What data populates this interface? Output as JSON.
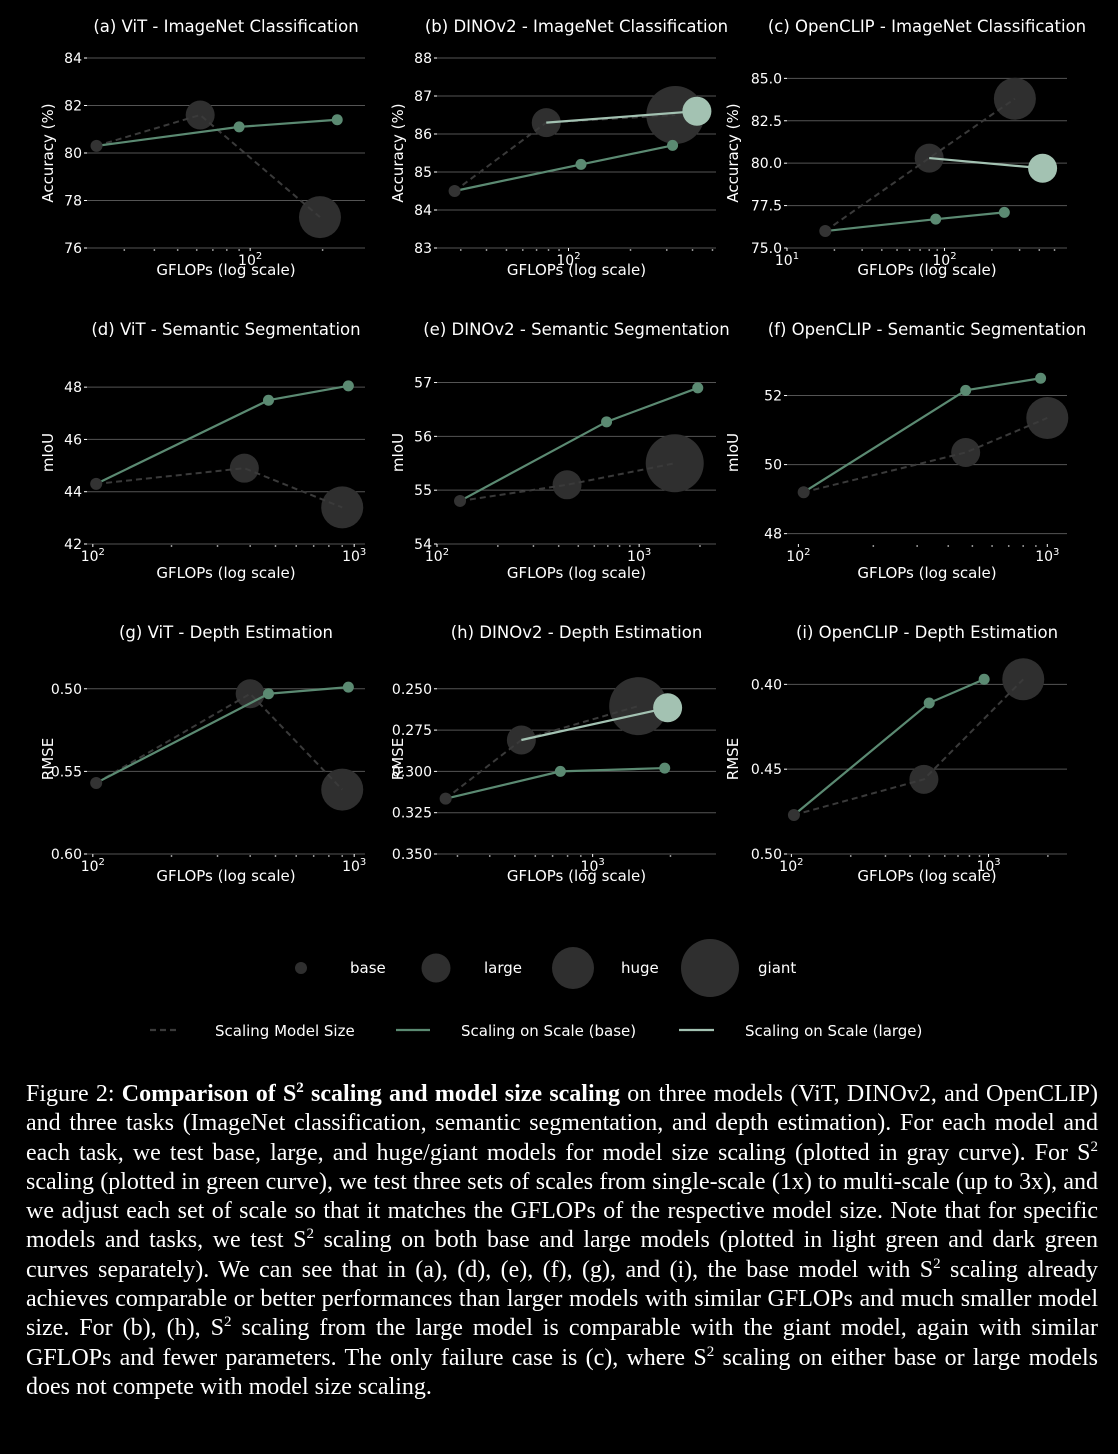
{
  "chart_data": [
    {
      "id": "a",
      "type": "line",
      "title": "(a) ViT - ImageNet Classification",
      "xlabel": "GFLOPs (log scale)",
      "ylabel": "Accuracy (%)",
      "xscale": "log",
      "xlim": [
        21,
        300
      ],
      "ylim": [
        76,
        84
      ],
      "yticks": [
        76,
        78,
        80,
        82,
        84
      ],
      "ytick_labels": [
        "76",
        "78",
        "80",
        "82",
        "84"
      ],
      "xticks": [
        100
      ],
      "xtick_labels": [
        "10^2"
      ],
      "minor_xticks": [
        30,
        40,
        50,
        60,
        70,
        80,
        90,
        200
      ],
      "series": [
        {
          "role": "model-size",
          "x": [
            23,
            62,
            195
          ],
          "y": [
            80.3,
            81.6,
            77.3
          ],
          "sizes": [
            "base",
            "large",
            "huge"
          ]
        },
        {
          "role": "s2-base",
          "x": [
            23,
            90,
            230
          ],
          "y": [
            80.3,
            81.1,
            81.4
          ]
        }
      ]
    },
    {
      "id": "b",
      "type": "line",
      "title": "(b) DINOv2 - ImageNet Classification",
      "xlabel": "GFLOPs (log scale)",
      "ylabel": "Accuracy (%)",
      "xscale": "log",
      "xlim": [
        23,
        520
      ],
      "ylim": [
        83,
        88
      ],
      "yticks": [
        83,
        84,
        85,
        86,
        87,
        88
      ],
      "ytick_labels": [
        "83",
        "84",
        "85",
        "86",
        "87",
        "88"
      ],
      "xticks": [
        100
      ],
      "xtick_labels": [
        "10^2"
      ],
      "minor_xticks": [
        30,
        40,
        50,
        60,
        70,
        80,
        90,
        200,
        300,
        400,
        500
      ],
      "series": [
        {
          "role": "model-size",
          "x": [
            28,
            78,
            330
          ],
          "y": [
            84.5,
            86.3,
            86.5
          ],
          "sizes": [
            "base",
            "large",
            "giant"
          ]
        },
        {
          "role": "s2-base",
          "x": [
            28,
            115,
            320
          ],
          "y": [
            84.5,
            85.2,
            85.7
          ]
        },
        {
          "role": "s2-large",
          "x": [
            78,
            420
          ],
          "y": [
            86.3,
            86.6
          ],
          "sizes": [
            "large"
          ]
        }
      ]
    },
    {
      "id": "c",
      "type": "line",
      "title": "(c) OpenCLIP - ImageNet Classification",
      "xlabel": "GFLOPs (log scale)",
      "ylabel": "Accuracy (%)",
      "xscale": "log",
      "xlim": [
        10,
        600
      ],
      "ylim": [
        75,
        86.2
      ],
      "yticks": [
        75.0,
        77.5,
        80.0,
        82.5,
        85.0
      ],
      "ytick_labels": [
        "75.0",
        "77.5",
        "80.0",
        "82.5",
        "85.0"
      ],
      "xticks": [
        10,
        100
      ],
      "xtick_labels": [
        "10^1",
        "10^2"
      ],
      "minor_xticks": [
        20,
        30,
        40,
        50,
        60,
        70,
        80,
        90,
        200,
        300,
        400,
        500,
        600
      ],
      "series": [
        {
          "role": "model-size",
          "x": [
            17.5,
            80,
            280
          ],
          "y": [
            76.0,
            80.3,
            83.8
          ],
          "sizes": [
            "base",
            "large",
            "huge"
          ]
        },
        {
          "role": "s2-base",
          "x": [
            17.5,
            88,
            240
          ],
          "y": [
            76.0,
            76.7,
            77.1
          ]
        },
        {
          "role": "s2-large",
          "x": [
            80,
            420
          ],
          "y": [
            80.3,
            79.7
          ],
          "sizes": [
            "large"
          ]
        }
      ]
    },
    {
      "id": "d",
      "type": "line",
      "title": "(d) ViT - Semantic Segmentation",
      "xlabel": "GFLOPs (log scale)",
      "ylabel": "mIoU",
      "xscale": "log",
      "xlim": [
        95,
        1100
      ],
      "ylim": [
        42,
        49
      ],
      "yticks": [
        42,
        44,
        46,
        48
      ],
      "ytick_labels": [
        "42",
        "44",
        "46",
        "48"
      ],
      "xticks": [
        100,
        1000
      ],
      "xtick_labels": [
        "10^2",
        "10^3"
      ],
      "minor_xticks": [
        200,
        300,
        400,
        500,
        600,
        700,
        800,
        900
      ],
      "series": [
        {
          "role": "model-size",
          "x": [
            103,
            380,
            900
          ],
          "y": [
            44.3,
            44.9,
            43.4
          ],
          "sizes": [
            "base",
            "large",
            "huge"
          ]
        },
        {
          "role": "s2-base",
          "x": [
            103,
            470,
            950
          ],
          "y": [
            44.3,
            47.5,
            48.05
          ]
        }
      ]
    },
    {
      "id": "e",
      "type": "line",
      "title": "(e) DINOv2 - Semantic Segmentation",
      "xlabel": "GFLOPs (log scale)",
      "ylabel": "mIoU",
      "xscale": "log",
      "xlim": [
        100,
        2400
      ],
      "ylim": [
        54,
        57.4
      ],
      "yticks": [
        54,
        55,
        56,
        57
      ],
      "ytick_labels": [
        "54",
        "55",
        "56",
        "57"
      ],
      "xticks": [
        100,
        1000
      ],
      "xtick_labels": [
        "10^2",
        "10^3"
      ],
      "minor_xticks": [
        200,
        300,
        400,
        500,
        600,
        700,
        800,
        900,
        2000
      ],
      "series": [
        {
          "role": "model-size",
          "x": [
            130,
            440,
            1500
          ],
          "y": [
            54.8,
            55.1,
            55.5
          ],
          "sizes": [
            "base",
            "large",
            "giant"
          ]
        },
        {
          "role": "s2-base",
          "x": [
            130,
            690,
            1950
          ],
          "y": [
            54.8,
            56.27,
            56.9
          ]
        }
      ]
    },
    {
      "id": "f",
      "type": "line",
      "title": "(f) OpenCLIP - Semantic Segmentation",
      "xlabel": "GFLOPs (log scale)",
      "ylabel": "mIoU",
      "xscale": "log",
      "xlim": [
        90,
        1200
      ],
      "ylim": [
        47.7,
        53
      ],
      "yticks": [
        48,
        50,
        52
      ],
      "ytick_labels": [
        "48",
        "50",
        "52"
      ],
      "xticks": [
        100,
        1000
      ],
      "xtick_labels": [
        "10^2",
        "10^3"
      ],
      "minor_xticks": [
        200,
        300,
        400,
        500,
        600,
        700,
        800,
        900
      ],
      "series": [
        {
          "role": "model-size",
          "x": [
            105,
            470,
            1000
          ],
          "y": [
            49.2,
            50.35,
            51.35
          ],
          "sizes": [
            "base",
            "large",
            "huge"
          ]
        },
        {
          "role": "s2-base",
          "x": [
            105,
            470,
            940
          ],
          "y": [
            49.2,
            52.15,
            52.5
          ]
        }
      ]
    },
    {
      "id": "g",
      "type": "line",
      "title": "(g) ViT - Depth Estimation",
      "xlabel": "GFLOPs (log scale)",
      "ylabel": "RMSE",
      "xscale": "log",
      "xlim": [
        95,
        1100
      ],
      "ylim": [
        0.6,
        0.485
      ],
      "y_inverted": true,
      "yticks": [
        0.5,
        0.55,
        0.6
      ],
      "ytick_labels": [
        "0.50",
        "0.55",
        "0.60"
      ],
      "xticks": [
        100,
        1000
      ],
      "xtick_labels": [
        "10^2",
        "10^3"
      ],
      "minor_xticks": [
        200,
        300,
        400,
        500,
        600,
        700,
        800,
        900
      ],
      "series": [
        {
          "role": "model-size",
          "x": [
            103,
            400,
            900
          ],
          "y": [
            0.557,
            0.503,
            0.561
          ],
          "sizes": [
            "base",
            "large",
            "huge"
          ]
        },
        {
          "role": "s2-base",
          "x": [
            103,
            470,
            950
          ],
          "y": [
            0.557,
            0.503,
            0.499
          ]
        }
      ]
    },
    {
      "id": "h",
      "type": "line",
      "title": "(h) DINOv2 - Depth Estimation",
      "xlabel": "GFLOPs (log scale)",
      "ylabel": "RMSE",
      "xscale": "log",
      "xlim": [
        250,
        3000
      ],
      "ylim": [
        0.35,
        0.235
      ],
      "y_inverted": true,
      "yticks": [
        0.25,
        0.275,
        0.3,
        0.325,
        0.35
      ],
      "ytick_labels": [
        "0.250",
        "0.275",
        "0.300",
        "0.325",
        "0.350"
      ],
      "xticks": [
        1000
      ],
      "xtick_labels": [
        "10^3"
      ],
      "minor_xticks": [
        300,
        400,
        500,
        600,
        700,
        800,
        900,
        2000
      ],
      "series": [
        {
          "role": "model-size",
          "x": [
            270,
            530,
            1500
          ],
          "y": [
            0.3165,
            0.281,
            0.2605
          ],
          "sizes": [
            "base",
            "large",
            "giant"
          ]
        },
        {
          "role": "s2-base",
          "x": [
            270,
            750,
            1900
          ],
          "y": [
            0.3165,
            0.3,
            0.298
          ]
        },
        {
          "role": "s2-large",
          "x": [
            530,
            1950
          ],
          "y": [
            0.281,
            0.2615
          ],
          "sizes": [
            "large"
          ]
        }
      ]
    },
    {
      "id": "i",
      "type": "line",
      "title": "(i) OpenCLIP - Depth Estimation",
      "xlabel": "GFLOPs (log scale)",
      "ylabel": "RMSE",
      "xscale": "log",
      "xlim": [
        95,
        2500
      ],
      "ylim": [
        0.5,
        0.388
      ],
      "y_inverted": true,
      "yticks": [
        0.4,
        0.45,
        0.5
      ],
      "ytick_labels": [
        "0.40",
        "0.45",
        "0.50"
      ],
      "xticks": [
        100,
        1000
      ],
      "xtick_labels": [
        "10^2",
        "10^3"
      ],
      "minor_xticks": [
        200,
        300,
        400,
        500,
        600,
        700,
        800,
        900,
        2000
      ],
      "series": [
        {
          "role": "model-size",
          "x": [
            103,
            470,
            1500
          ],
          "y": [
            0.477,
            0.456,
            0.397
          ],
          "sizes": [
            "base",
            "large",
            "huge"
          ]
        },
        {
          "role": "s2-base",
          "x": [
            103,
            500,
            950
          ],
          "y": [
            0.477,
            0.411,
            0.397
          ]
        }
      ]
    }
  ],
  "legend": {
    "sizes": [
      {
        "size": "base",
        "label": "base"
      },
      {
        "size": "large",
        "label": "large"
      },
      {
        "size": "huge",
        "label": "huge"
      },
      {
        "size": "giant",
        "label": "giant"
      }
    ],
    "lines": [
      {
        "role": "model-size",
        "label": "Scaling Model Size"
      },
      {
        "role": "s2-base",
        "label": "Scaling on Scale (base)"
      },
      {
        "role": "s2-large",
        "label": "Scaling on Scale (large)"
      }
    ]
  },
  "styles": {
    "model_size_color": "#3a3a3a",
    "marker_color": "#2f2f2f",
    "s2_base_color": "#5b8a72",
    "s2_large_color": "#a3c2b2",
    "grid_color": "#545454"
  },
  "caption": {
    "label": "Figure 2:",
    "bold_pre": "Comparison of S",
    "bold_sup": "2",
    "bold_post": "scaling and model size scaling",
    "p1": "on three models (ViT, DINOv2, and OpenCLIP) and three tasks (ImageNet classification, semantic segmentation, and depth estimation). For each model and each task, we test base, large, and huge/giant models for model size scaling (plotted in gray curve). For S",
    "p2": "scaling (plotted in green curve), we test three sets of scales from single-scale (1x) to multi-scale (up to 3x), and we adjust each set of scale so that it matches the GFLOPs of the respective model size. Note that for specific models and tasks, we test S",
    "p3": "scaling on both base and large models (plotted in light green and dark green curves separately). We can see that in (a), (d), (e), (f), (g), and (i), the base model with S",
    "p4": "scaling already achieves comparable or better performances than larger models with similar GFLOPs and much smaller model size. For (b), (h), S",
    "p5": "scaling from the large model is comparable with the giant model, again with similar GFLOPs and fewer parameters. The only failure case is (c), where S",
    "p6": "scaling on either base or large models does not compete with model size scaling.",
    "sup": "2"
  }
}
